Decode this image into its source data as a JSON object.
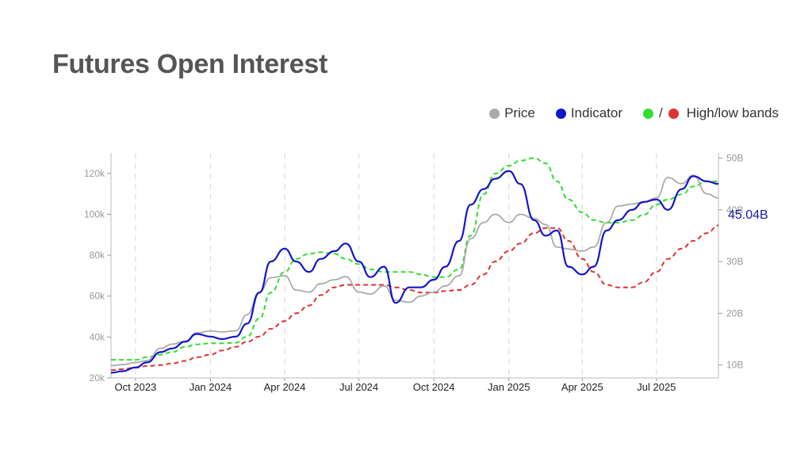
{
  "title": "Futures Open Interest",
  "legend": {
    "price_label": "Price",
    "indicator_label": "Indicator",
    "bands_label": "High/low bands",
    "bands_slash": "/"
  },
  "colors": {
    "price": "#aaaaaa",
    "indicator": "#1515c8",
    "high_band": "#33dd33",
    "low_band": "#dd3333",
    "title": "#555555"
  },
  "chart_data": {
    "type": "line",
    "x_ticks": [
      "Oct 2023",
      "Jan 2024",
      "Apr 2024",
      "Jul 2024",
      "Oct 2024",
      "Jan 2025",
      "Apr 2025",
      "Jul 2025"
    ],
    "x_tick_dates": [
      "2023-10-01",
      "2024-01-01",
      "2024-04-01",
      "2024-07-01",
      "2024-10-01",
      "2025-01-01",
      "2025-04-01",
      "2025-07-01"
    ],
    "x_range": [
      "2023-09-01",
      "2025-09-15"
    ],
    "y_left": {
      "ticks": [
        "20k",
        "40k",
        "60k",
        "80k",
        "100k",
        "120k"
      ],
      "values": [
        20000,
        40000,
        60000,
        80000,
        100000,
        120000
      ],
      "range": [
        20000,
        130000
      ]
    },
    "y_right": {
      "ticks": [
        "10B",
        "20B",
        "30B",
        "40B",
        "50B"
      ],
      "values": [
        10,
        20,
        30,
        40,
        50
      ],
      "range": [
        7.5,
        51
      ]
    },
    "last_value_label": "45.04B",
    "grid": "vertical-dashed",
    "legend_position": "top-right",
    "dates": [
      "2023-09-01",
      "2023-09-15",
      "2023-10-01",
      "2023-10-15",
      "2023-11-01",
      "2023-11-15",
      "2023-12-01",
      "2023-12-15",
      "2024-01-01",
      "2024-01-15",
      "2024-02-01",
      "2024-02-15",
      "2024-03-01",
      "2024-03-15",
      "2024-04-01",
      "2024-04-15",
      "2024-05-01",
      "2024-05-15",
      "2024-06-01",
      "2024-06-15",
      "2024-07-01",
      "2024-07-15",
      "2024-08-01",
      "2024-08-15",
      "2024-09-01",
      "2024-09-15",
      "2024-10-01",
      "2024-10-15",
      "2024-11-01",
      "2024-11-15",
      "2024-12-01",
      "2024-12-15",
      "2025-01-01",
      "2025-01-15",
      "2025-02-01",
      "2025-02-15",
      "2025-03-01",
      "2025-03-15",
      "2025-04-01",
      "2025-04-15",
      "2025-05-01",
      "2025-05-15",
      "2025-06-01",
      "2025-06-15",
      "2025-07-01",
      "2025-07-15",
      "2025-08-01",
      "2025-08-15",
      "2025-09-01",
      "2025-09-15"
    ],
    "series": [
      {
        "name": "Price",
        "axis": "left",
        "values": [
          26000,
          26500,
          27500,
          28500,
          34500,
          36500,
          38000,
          42000,
          43000,
          42500,
          43000,
          51000,
          62000,
          69000,
          70000,
          63000,
          62000,
          66000,
          68000,
          69500,
          62000,
          61000,
          65000,
          58000,
          57000,
          60000,
          62000,
          65000,
          70000,
          88000,
          96000,
          100000,
          96000,
          100000,
          98000,
          95000,
          84000,
          83000,
          82000,
          84000,
          96000,
          104000,
          105000,
          106000,
          108000,
          118000,
          115000,
          119000,
          110000,
          108000
        ]
      },
      {
        "name": "Indicator",
        "axis": "right",
        "values": [
          8.5,
          8.8,
          9.5,
          10.5,
          12.5,
          13.2,
          14.5,
          16.0,
          15.5,
          15.0,
          15.5,
          18.0,
          24.0,
          30.0,
          32.5,
          30.0,
          28.0,
          30.5,
          32.0,
          33.5,
          30.0,
          27.0,
          29.0,
          22.0,
          25.0,
          25.0,
          26.5,
          29.0,
          34.0,
          41.0,
          44.0,
          46.0,
          47.5,
          45.0,
          38.0,
          35.0,
          36.0,
          29.0,
          27.5,
          29.0,
          36.0,
          38.0,
          40.0,
          41.5,
          42.0,
          40.0,
          44.0,
          46.5,
          45.5,
          45.0
        ]
      },
      {
        "name": "High band",
        "axis": "right",
        "values": [
          11.0,
          11.0,
          11.0,
          11.5,
          12.0,
          12.5,
          13.5,
          14.0,
          14.2,
          14.2,
          14.3,
          15.5,
          19.0,
          24.0,
          28.0,
          30.5,
          31.5,
          31.8,
          31.5,
          30.5,
          29.5,
          28.5,
          28.0,
          28.0,
          28.0,
          27.5,
          27.0,
          27.0,
          28.5,
          35.0,
          43.0,
          47.0,
          48.5,
          49.5,
          50.0,
          49.0,
          45.5,
          42.0,
          39.5,
          38.0,
          37.5,
          37.5,
          38.0,
          39.0,
          41.0,
          42.0,
          43.0,
          44.5,
          45.5,
          45.5
        ]
      },
      {
        "name": "Low band",
        "axis": "right",
        "values": [
          9.0,
          9.2,
          9.5,
          9.8,
          10.0,
          10.3,
          10.8,
          11.5,
          12.0,
          12.8,
          13.5,
          14.5,
          15.5,
          17.0,
          18.5,
          20.0,
          21.5,
          23.5,
          25.0,
          25.5,
          25.5,
          25.5,
          25.5,
          25.0,
          24.5,
          24.0,
          24.0,
          24.3,
          24.5,
          25.5,
          27.5,
          30.0,
          32.0,
          33.5,
          35.5,
          36.5,
          36.5,
          34.0,
          30.5,
          28.0,
          25.5,
          25.0,
          25.0,
          26.0,
          28.0,
          30.5,
          32.5,
          34.0,
          35.5,
          37.0
        ]
      }
    ]
  }
}
